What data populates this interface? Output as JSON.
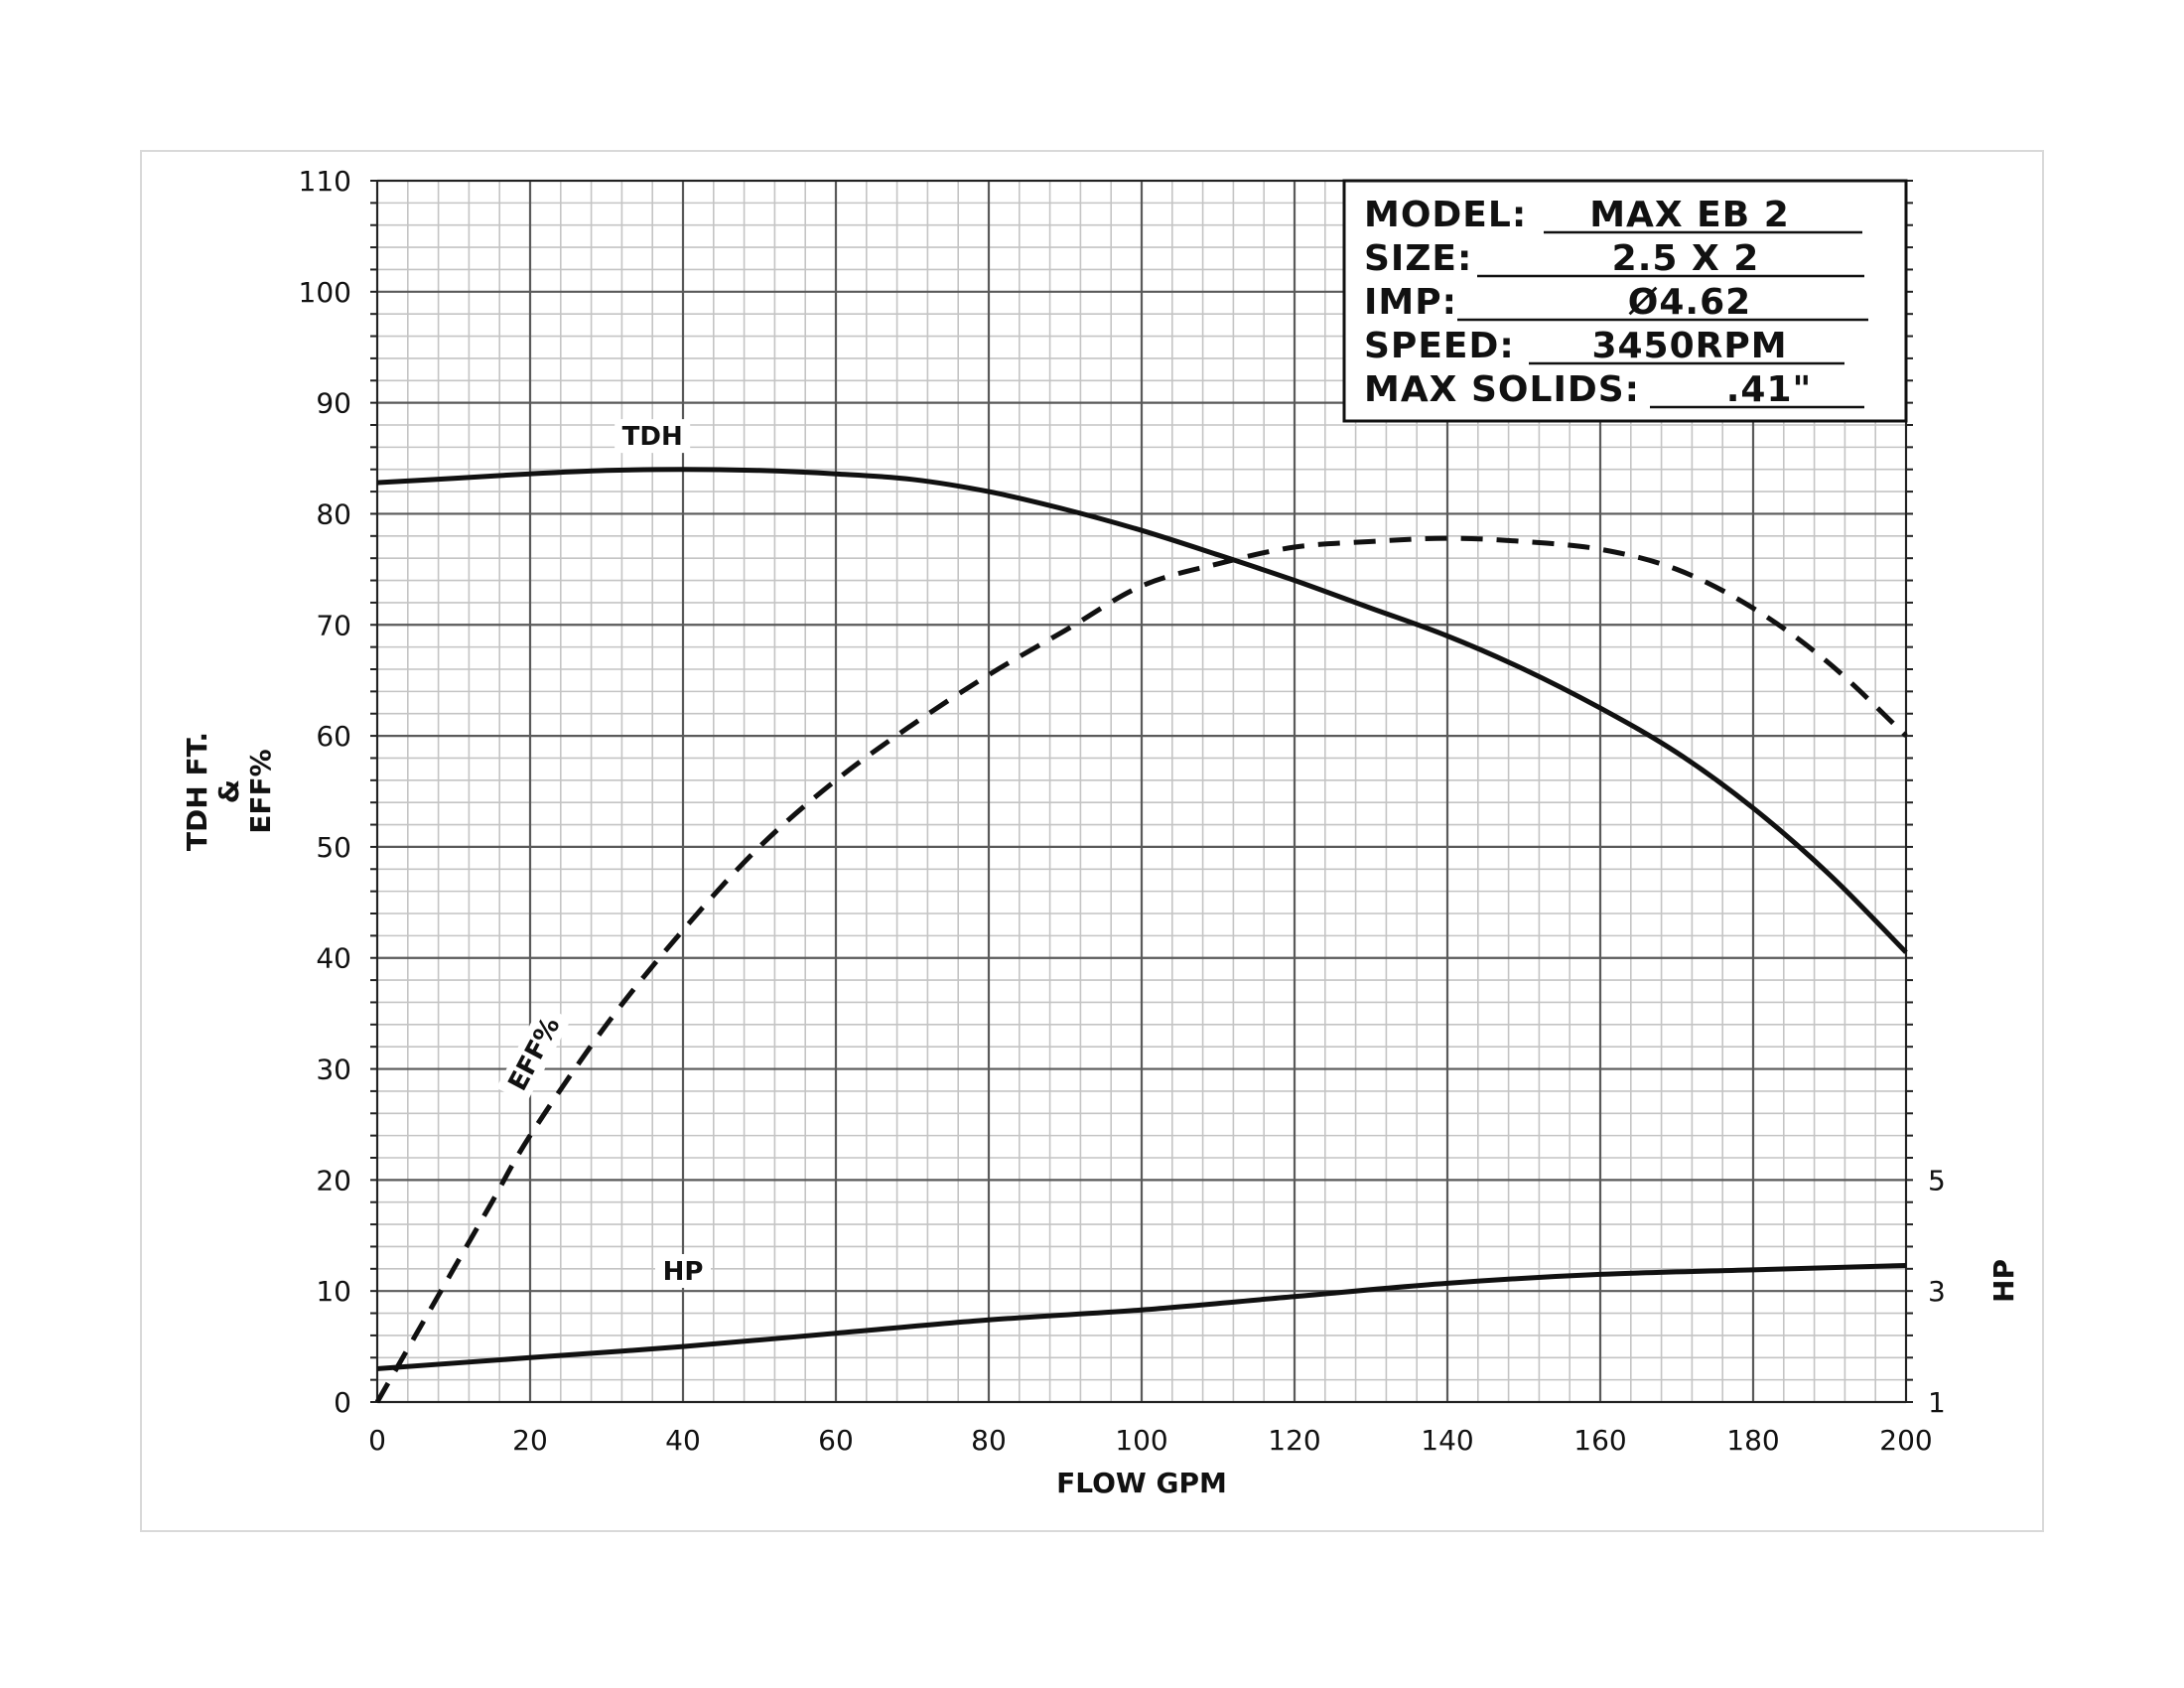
{
  "chart_data": {
    "type": "line",
    "title": "",
    "xlabel": "FLOW GPM",
    "ylabel": [
      "TDH FT.",
      "&",
      "EFF%"
    ],
    "y2label": "HP",
    "xlim": [
      0,
      200
    ],
    "ylim": [
      0,
      110
    ],
    "x_ticks": [
      "0",
      "20",
      "40",
      "60",
      "80",
      "100",
      "120",
      "140",
      "160",
      "180",
      "200"
    ],
    "y_ticks": [
      "0",
      "10",
      "20",
      "30",
      "40",
      "50",
      "60",
      "70",
      "80",
      "90",
      "100",
      "110"
    ],
    "y2_ticks": [
      {
        "label": "1",
        "at": 0
      },
      {
        "label": "3",
        "at": 10
      },
      {
        "label": "5",
        "at": 20
      }
    ],
    "grid": true,
    "series": [
      {
        "name": "TDH",
        "style": "solid",
        "x": [
          0,
          10,
          20,
          30,
          40,
          50,
          60,
          70,
          80,
          90,
          100,
          110,
          120,
          130,
          140,
          150,
          160,
          170,
          180,
          190,
          200
        ],
        "values": [
          82.8,
          83.2,
          83.6,
          83.9,
          84.0,
          83.9,
          83.6,
          83.1,
          82.0,
          80.4,
          78.5,
          76.3,
          74.0,
          71.5,
          69.0,
          66.0,
          62.5,
          58.5,
          53.5,
          47.5,
          40.5
        ]
      },
      {
        "name": "EFF%",
        "style": "dashed",
        "x": [
          0,
          5,
          10,
          15,
          20,
          30,
          40,
          50,
          60,
          70,
          80,
          90,
          100,
          110,
          120,
          130,
          140,
          150,
          160,
          170,
          180,
          190,
          200
        ],
        "values": [
          0,
          6,
          12,
          18,
          24,
          34,
          42.5,
          50,
          56,
          61,
          65.5,
          69.5,
          73.5,
          75.5,
          77,
          77.5,
          77.8,
          77.5,
          76.8,
          75,
          71.5,
          66.5,
          60
        ]
      },
      {
        "name": "HP",
        "style": "solid",
        "x": [
          0,
          20,
          40,
          60,
          80,
          100,
          120,
          140,
          160,
          180,
          200
        ],
        "values": [
          3.0,
          4.0,
          5.0,
          6.2,
          7.4,
          8.3,
          9.5,
          10.7,
          11.5,
          11.9,
          12.3
        ]
      }
    ],
    "annotations": [
      {
        "text": "TDH",
        "x": 36,
        "y": 86.2
      },
      {
        "text": "EFF%",
        "x": 21.5,
        "y": 31,
        "rotate": -62
      },
      {
        "text": "HP",
        "x": 40,
        "y": 11
      }
    ]
  },
  "info_box": [
    {
      "label": "MODEL:",
      "value": "MAX EB 2"
    },
    {
      "label": "SIZE:",
      "value": "2.5 X 2"
    },
    {
      "label": "IMP:",
      "value": "Ø4.62"
    },
    {
      "label": "SPEED:",
      "value": "3450RPM"
    },
    {
      "label": "MAX SOLIDS:",
      "value": ".41\""
    }
  ]
}
